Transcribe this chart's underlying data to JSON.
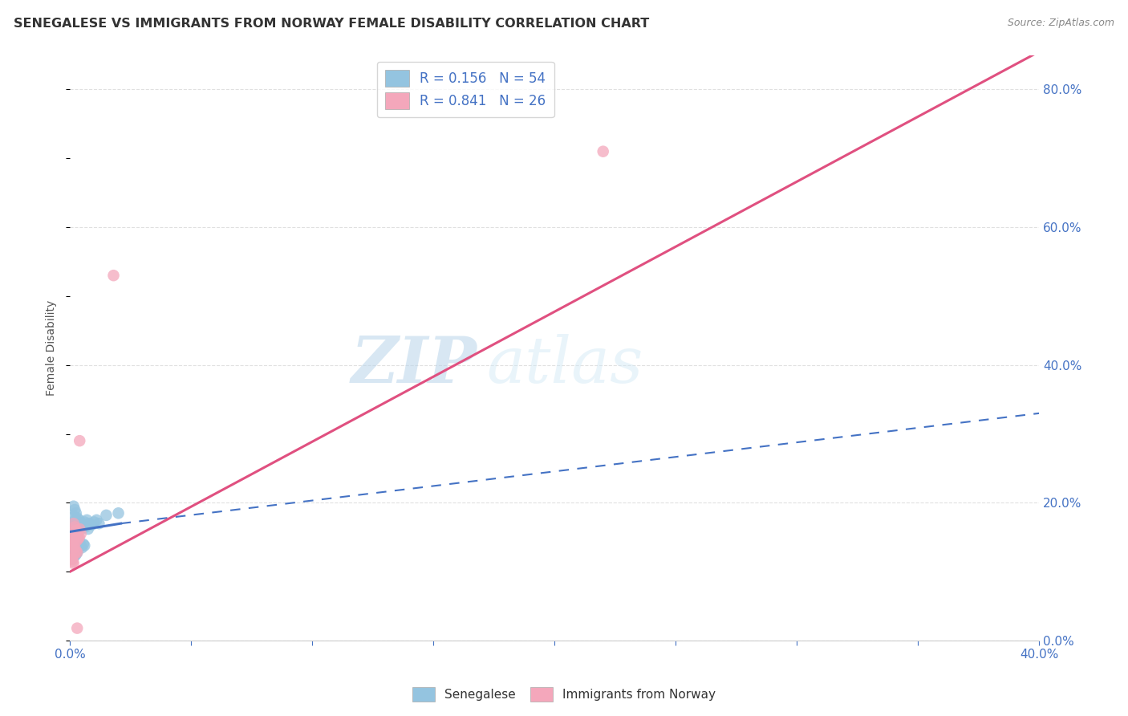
{
  "title": "SENEGALESE VS IMMIGRANTS FROM NORWAY FEMALE DISABILITY CORRELATION CHART",
  "source": "Source: ZipAtlas.com",
  "ylabel": "Female Disability",
  "xlim": [
    0.0,
    0.4
  ],
  "ylim": [
    0.0,
    0.85
  ],
  "xtick_positions": [
    0.0,
    0.05,
    0.1,
    0.15,
    0.2,
    0.25,
    0.3,
    0.35,
    0.4
  ],
  "xtick_labels_show": {
    "0": "0.0%",
    "8": "40.0%"
  },
  "yticks": [
    0.0,
    0.2,
    0.4,
    0.6,
    0.8
  ],
  "ytick_labels": [
    "0.0%",
    "20.0%",
    "40.0%",
    "60.0%",
    "80.0%"
  ],
  "blue_color": "#94c4e0",
  "pink_color": "#f4a7bb",
  "blue_line_color": "#4472c4",
  "pink_line_color": "#e05080",
  "text_color": "#4472c4",
  "legend_blue_R": "0.156",
  "legend_blue_N": "54",
  "legend_pink_R": "0.841",
  "legend_pink_N": "26",
  "watermark_zip": "ZIP",
  "watermark_atlas": "atlas",
  "blue_scatter": [
    [
      0.0015,
      0.195
    ],
    [
      0.002,
      0.19
    ],
    [
      0.0025,
      0.185
    ],
    [
      0.0018,
      0.18
    ],
    [
      0.003,
      0.178
    ],
    [
      0.0022,
      0.175
    ],
    [
      0.0035,
      0.172
    ],
    [
      0.0028,
      0.17
    ],
    [
      0.004,
      0.168
    ],
    [
      0.0032,
      0.165
    ],
    [
      0.0045,
      0.162
    ],
    [
      0.0038,
      0.175
    ],
    [
      0.005,
      0.17
    ],
    [
      0.0042,
      0.168
    ],
    [
      0.0055,
      0.165
    ],
    [
      0.0015,
      0.158
    ],
    [
      0.001,
      0.162
    ],
    [
      0.0008,
      0.168
    ],
    [
      0.0012,
      0.165
    ],
    [
      0.006,
      0.172
    ],
    [
      0.007,
      0.175
    ],
    [
      0.008,
      0.17
    ],
    [
      0.0065,
      0.165
    ],
    [
      0.0075,
      0.162
    ],
    [
      0.0015,
      0.155
    ],
    [
      0.002,
      0.152
    ],
    [
      0.0025,
      0.148
    ],
    [
      0.003,
      0.15
    ],
    [
      0.0018,
      0.145
    ],
    [
      0.0022,
      0.142
    ],
    [
      0.0028,
      0.148
    ],
    [
      0.0035,
      0.145
    ],
    [
      0.001,
      0.14
    ],
    [
      0.0012,
      0.138
    ],
    [
      0.0008,
      0.135
    ],
    [
      0.004,
      0.142
    ],
    [
      0.0045,
      0.138
    ],
    [
      0.005,
      0.135
    ],
    [
      0.0055,
      0.14
    ],
    [
      0.006,
      0.138
    ],
    [
      0.0015,
      0.13
    ],
    [
      0.002,
      0.128
    ],
    [
      0.0025,
      0.125
    ],
    [
      0.003,
      0.128
    ],
    [
      0.0018,
      0.122
    ],
    [
      0.0008,
      0.12
    ],
    [
      0.001,
      0.118
    ],
    [
      0.0012,
      0.122
    ],
    [
      0.009,
      0.168
    ],
    [
      0.01,
      0.172
    ],
    [
      0.011,
      0.175
    ],
    [
      0.012,
      0.17
    ],
    [
      0.015,
      0.182
    ],
    [
      0.02,
      0.185
    ]
  ],
  "pink_scatter": [
    [
      0.0015,
      0.17
    ],
    [
      0.002,
      0.165
    ],
    [
      0.0025,
      0.16
    ],
    [
      0.0018,
      0.158
    ],
    [
      0.003,
      0.155
    ],
    [
      0.0022,
      0.152
    ],
    [
      0.0035,
      0.148
    ],
    [
      0.0028,
      0.145
    ],
    [
      0.004,
      0.162
    ],
    [
      0.0032,
      0.158
    ],
    [
      0.0045,
      0.155
    ],
    [
      0.0038,
      0.15
    ],
    [
      0.001,
      0.148
    ],
    [
      0.0012,
      0.145
    ],
    [
      0.0008,
      0.14
    ],
    [
      0.0015,
      0.138
    ],
    [
      0.002,
      0.135
    ],
    [
      0.0025,
      0.13
    ],
    [
      0.003,
      0.128
    ],
    [
      0.0018,
      0.125
    ],
    [
      0.0008,
      0.12
    ],
    [
      0.001,
      0.118
    ],
    [
      0.0012,
      0.115
    ],
    [
      0.0015,
      0.112
    ],
    [
      0.004,
      0.29
    ]
  ],
  "pink_outlier_high": [
    0.018,
    0.53
  ],
  "pink_outlier_low": [
    0.003,
    0.018
  ],
  "pink_big_outlier": [
    0.22,
    0.71
  ],
  "blue_line_x0": 0.0,
  "blue_line_y0": 0.158,
  "blue_line_x1": 0.021,
  "blue_line_y1": 0.17,
  "blue_line_x1dash": 0.4,
  "blue_line_y1dash": 0.33,
  "pink_line_x0": 0.0,
  "pink_line_y0": 0.1,
  "pink_line_x1": 0.4,
  "pink_line_y1": 0.855,
  "background_color": "#ffffff",
  "grid_color": "#e0e0e0"
}
